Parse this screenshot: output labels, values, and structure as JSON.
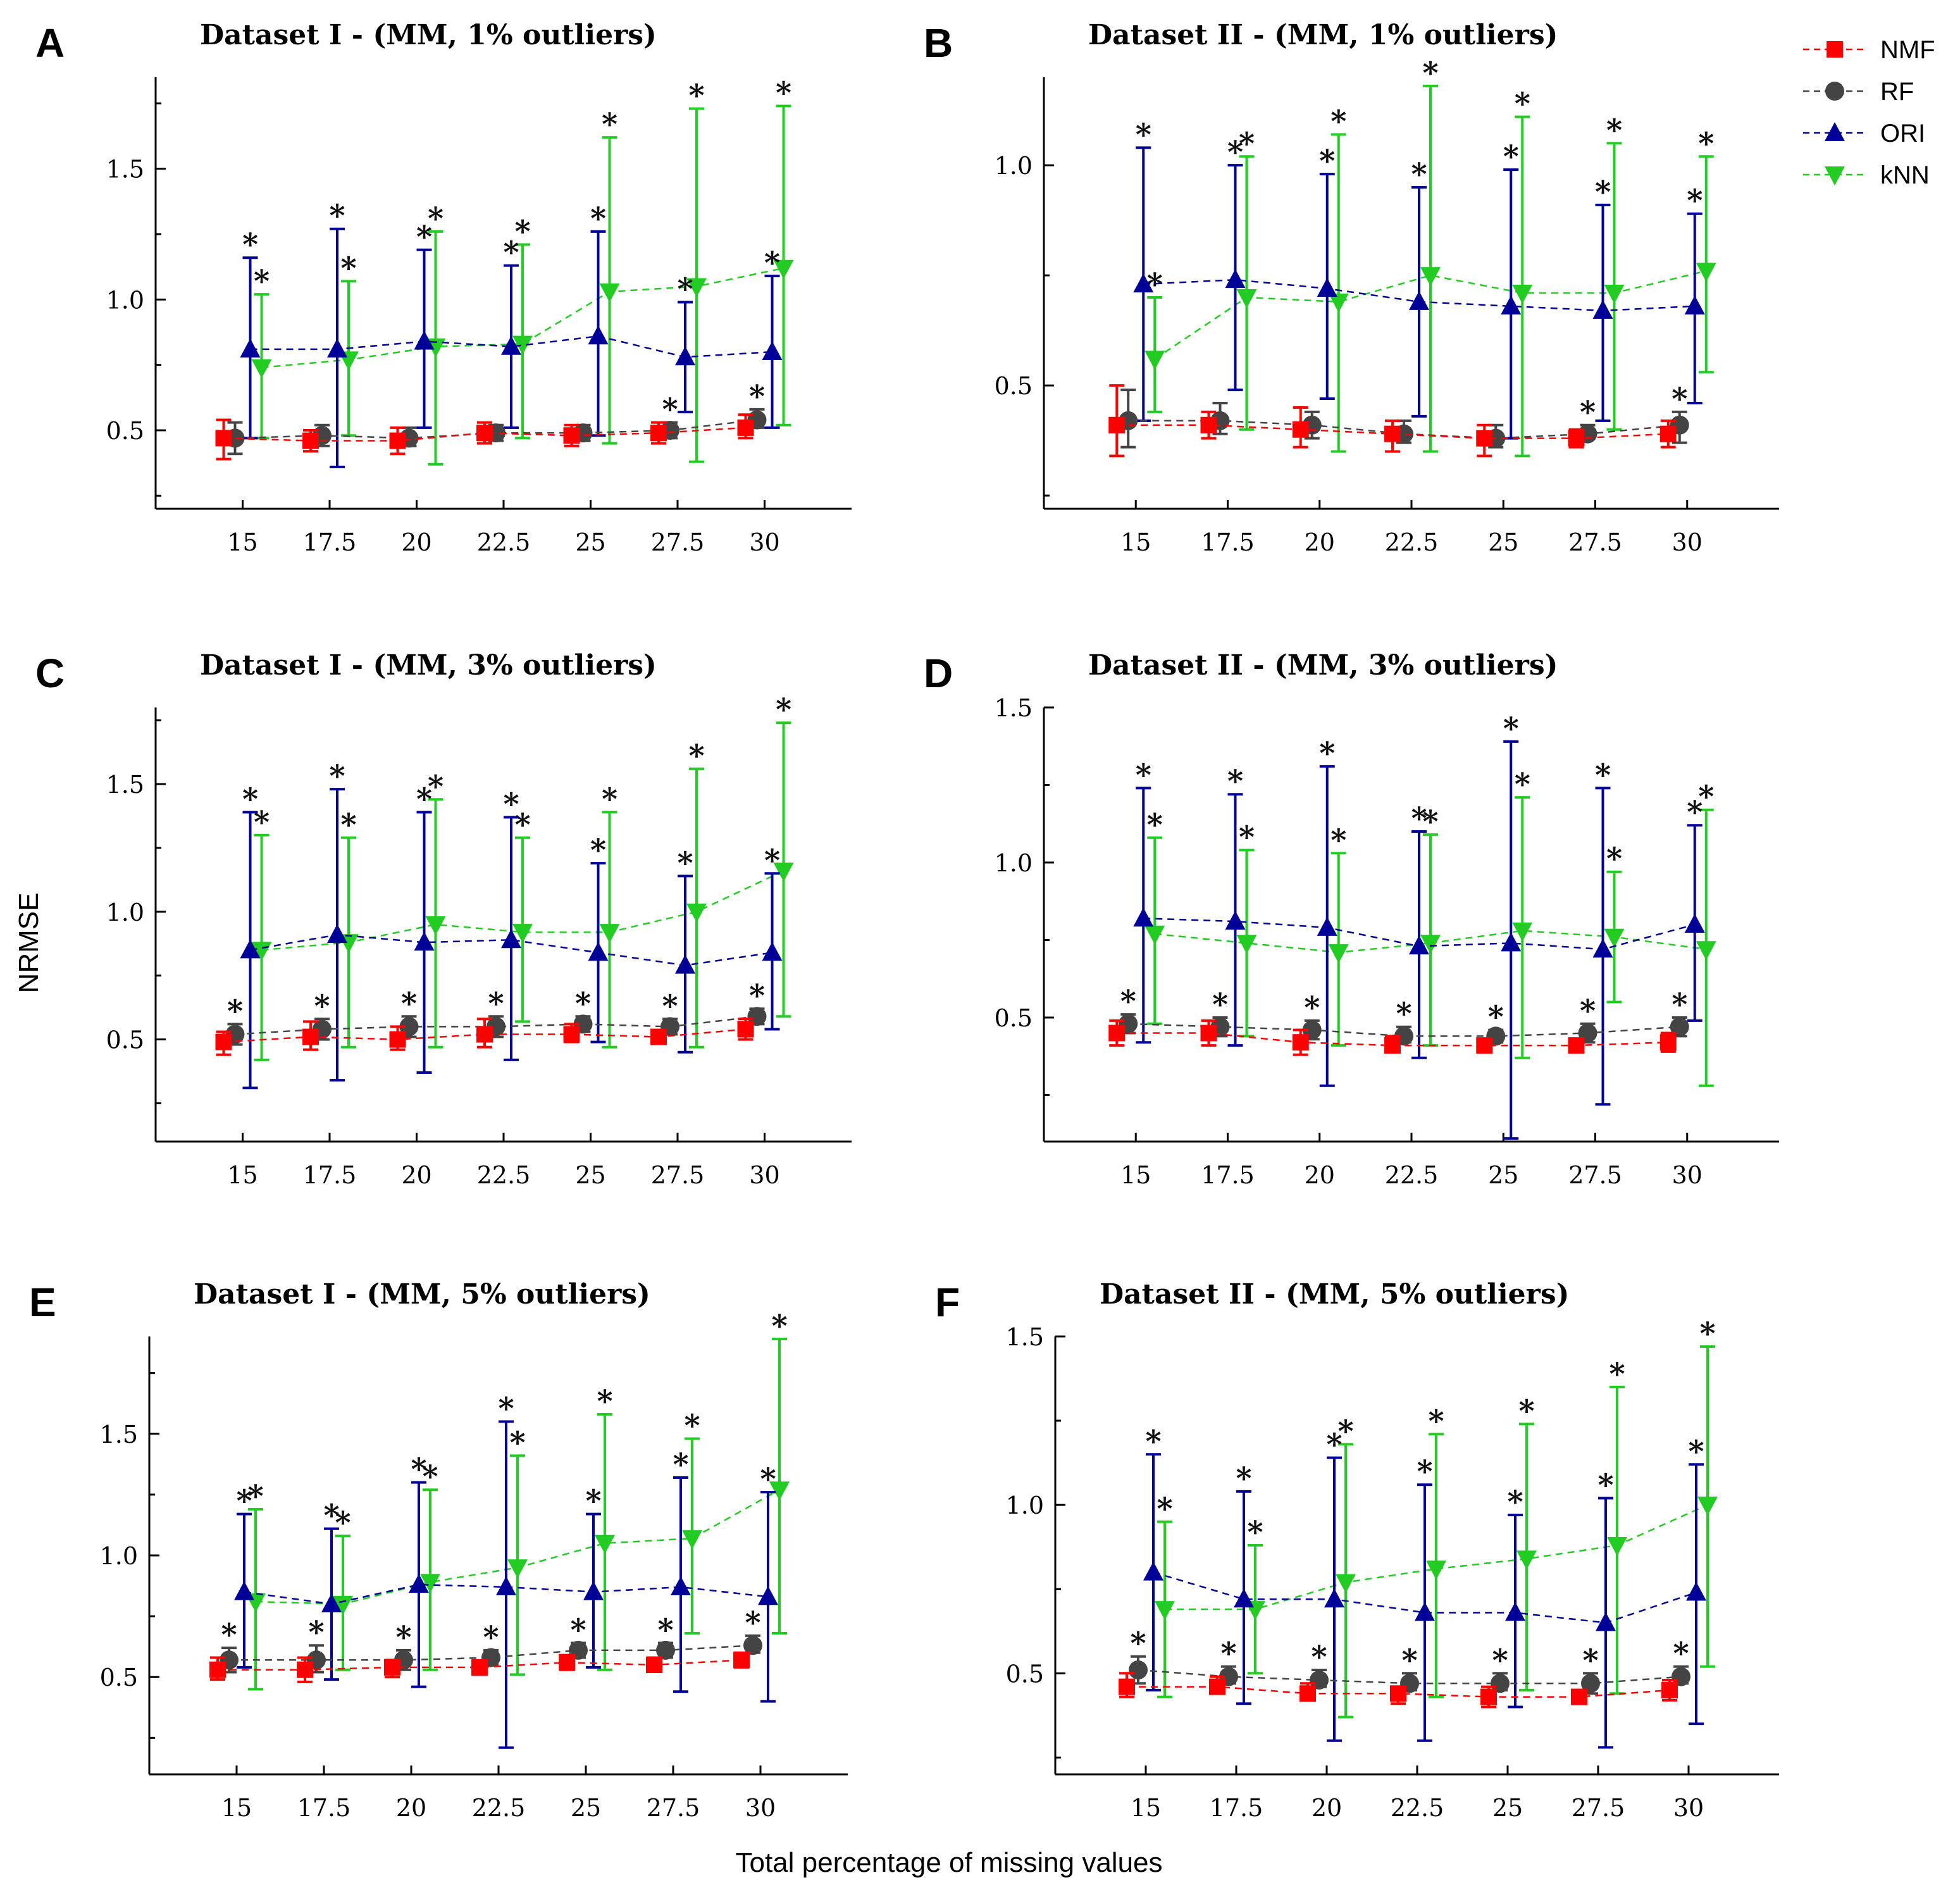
{
  "figure": {
    "ylabel": "NRMSE",
    "xlabel": "Total percentage of missing values"
  },
  "legend": [
    {
      "name": "NMF",
      "color": "#ff0000",
      "marker": "square"
    },
    {
      "name": "RF",
      "color": "#444444",
      "marker": "circle"
    },
    {
      "name": "ORI",
      "color": "#000099",
      "marker": "triangle-up"
    },
    {
      "name": "kNN",
      "color": "#22cc22",
      "marker": "triangle-down"
    }
  ],
  "chart_data": [
    {
      "type": "line",
      "letter": "A",
      "title": "Dataset  I - (MM, 1% outliers)",
      "categories": [
        "15",
        "17.5",
        "20",
        "22.5",
        "25",
        "27.5",
        "30"
      ],
      "ylim": [
        0.2,
        1.85
      ],
      "yticks": [
        0.5,
        1.0,
        1.5
      ],
      "yticklabels": [
        "0.5",
        "1.0",
        "1.5"
      ],
      "series": [
        {
          "name": "NMF",
          "mean": [
            0.47,
            0.46,
            0.46,
            0.49,
            0.48,
            0.49,
            0.51
          ],
          "lo": [
            0.39,
            0.42,
            0.41,
            0.45,
            0.44,
            0.45,
            0.47
          ],
          "hi": [
            0.54,
            0.5,
            0.51,
            0.53,
            0.52,
            0.53,
            0.56
          ],
          "star": [
            0,
            0,
            0,
            0,
            0,
            0,
            0
          ]
        },
        {
          "name": "RF",
          "mean": [
            0.47,
            0.48,
            0.47,
            0.49,
            0.49,
            0.5,
            0.54
          ],
          "lo": [
            0.41,
            0.44,
            0.44,
            0.46,
            0.46,
            0.47,
            0.51
          ],
          "hi": [
            0.53,
            0.52,
            0.51,
            0.52,
            0.52,
            0.53,
            0.58
          ],
          "star": [
            0,
            0,
            0,
            0,
            0,
            1,
            1
          ]
        },
        {
          "name": "ORI",
          "mean": [
            0.81,
            0.81,
            0.84,
            0.82,
            0.86,
            0.78,
            0.8
          ],
          "lo": [
            0.47,
            0.36,
            0.51,
            0.51,
            0.48,
            0.57,
            0.51
          ],
          "hi": [
            1.16,
            1.27,
            1.19,
            1.13,
            1.26,
            0.99,
            1.09
          ],
          "star": [
            1,
            1,
            1,
            1,
            1,
            1,
            1
          ]
        },
        {
          "name": "kNN",
          "mean": [
            0.74,
            0.77,
            0.82,
            0.83,
            1.03,
            1.05,
            1.12
          ],
          "lo": [
            0.47,
            0.48,
            0.37,
            0.47,
            0.45,
            0.38,
            0.52
          ],
          "hi": [
            1.02,
            1.07,
            1.26,
            1.21,
            1.62,
            1.73,
            1.74
          ],
          "star": [
            1,
            1,
            1,
            1,
            1,
            1,
            1
          ]
        }
      ]
    },
    {
      "type": "line",
      "letter": "B",
      "title": "Dataset II - (MM, 1% outliers)",
      "categories": [
        "15",
        "17.5",
        "20",
        "22.5",
        "25",
        "27.5",
        "30"
      ],
      "ylim": [
        0.22,
        1.2
      ],
      "yticks": [
        0.5,
        1.0
      ],
      "yticklabels": [
        "0.5",
        "1.0"
      ],
      "series": [
        {
          "name": "NMF",
          "mean": [
            0.41,
            0.41,
            0.4,
            0.39,
            0.38,
            0.38,
            0.39
          ],
          "lo": [
            0.34,
            0.38,
            0.36,
            0.35,
            0.34,
            0.36,
            0.36
          ],
          "hi": [
            0.5,
            0.44,
            0.45,
            0.42,
            0.41,
            0.4,
            0.42
          ],
          "star": [
            0,
            0,
            0,
            0,
            0,
            0,
            0
          ]
        },
        {
          "name": "RF",
          "mean": [
            0.42,
            0.42,
            0.41,
            0.39,
            0.38,
            0.39,
            0.41
          ],
          "lo": [
            0.36,
            0.39,
            0.38,
            0.37,
            0.36,
            0.38,
            0.37
          ],
          "hi": [
            0.49,
            0.46,
            0.44,
            0.42,
            0.41,
            0.41,
            0.44
          ],
          "star": [
            0,
            0,
            0,
            0,
            0,
            1,
            1
          ]
        },
        {
          "name": "ORI",
          "mean": [
            0.73,
            0.74,
            0.72,
            0.69,
            0.68,
            0.67,
            0.68
          ],
          "lo": [
            0.42,
            0.49,
            0.47,
            0.43,
            0.38,
            0.42,
            0.46
          ],
          "hi": [
            1.04,
            1.0,
            0.98,
            0.95,
            0.99,
            0.91,
            0.89
          ],
          "star": [
            1,
            1,
            1,
            1,
            1,
            1,
            1
          ]
        },
        {
          "name": "kNN",
          "mean": [
            0.56,
            0.7,
            0.69,
            0.75,
            0.71,
            0.71,
            0.76
          ],
          "lo": [
            0.44,
            0.4,
            0.35,
            0.35,
            0.34,
            0.4,
            0.53
          ],
          "hi": [
            0.7,
            1.02,
            1.07,
            1.18,
            1.11,
            1.05,
            1.02
          ],
          "star": [
            1,
            1,
            1,
            1,
            1,
            1,
            1
          ]
        }
      ]
    },
    {
      "type": "line",
      "letter": "C",
      "title": "Dataset  I - (MM, 3% outliers)",
      "categories": [
        "15",
        "17.5",
        "20",
        "22.5",
        "25",
        "27.5",
        "30"
      ],
      "ylim": [
        0.1,
        1.8
      ],
      "yticks": [
        0.5,
        1.0,
        1.5
      ],
      "yticklabels": [
        "0.5",
        "1.0",
        "1.5"
      ],
      "series": [
        {
          "name": "NMF",
          "mean": [
            0.49,
            0.51,
            0.5,
            0.52,
            0.52,
            0.51,
            0.54
          ],
          "lo": [
            0.44,
            0.46,
            0.46,
            0.47,
            0.49,
            0.49,
            0.5
          ],
          "hi": [
            0.53,
            0.57,
            0.55,
            0.58,
            0.56,
            0.53,
            0.58
          ],
          "star": [
            0,
            0,
            0,
            0,
            0,
            0,
            0
          ]
        },
        {
          "name": "RF",
          "mean": [
            0.52,
            0.54,
            0.55,
            0.55,
            0.56,
            0.55,
            0.59
          ],
          "lo": [
            0.48,
            0.5,
            0.51,
            0.51,
            0.53,
            0.52,
            0.56
          ],
          "hi": [
            0.56,
            0.58,
            0.59,
            0.59,
            0.59,
            0.58,
            0.62
          ],
          "star": [
            1,
            1,
            1,
            1,
            1,
            1,
            1
          ]
        },
        {
          "name": "ORI",
          "mean": [
            0.85,
            0.91,
            0.88,
            0.89,
            0.84,
            0.79,
            0.84
          ],
          "lo": [
            0.31,
            0.34,
            0.37,
            0.42,
            0.49,
            0.45,
            0.54
          ],
          "hi": [
            1.39,
            1.48,
            1.39,
            1.37,
            1.19,
            1.14,
            1.15
          ],
          "star": [
            1,
            1,
            1,
            1,
            1,
            1,
            1
          ]
        },
        {
          "name": "kNN",
          "mean": [
            0.85,
            0.88,
            0.95,
            0.92,
            0.92,
            1.0,
            1.16
          ],
          "lo": [
            0.42,
            0.47,
            0.47,
            0.57,
            0.47,
            0.47,
            0.59
          ],
          "hi": [
            1.3,
            1.29,
            1.44,
            1.29,
            1.39,
            1.56,
            1.74
          ],
          "star": [
            1,
            1,
            1,
            1,
            1,
            1,
            1
          ]
        }
      ]
    },
    {
      "type": "line",
      "letter": "D",
      "title": "Dataset II - (MM, 3% outliers)",
      "categories": [
        "15",
        "17.5",
        "20",
        "22.5",
        "25",
        "27.5",
        "30"
      ],
      "ylim": [
        0.1,
        1.5
      ],
      "yticks": [
        0.5,
        1.0,
        1.5
      ],
      "yticklabels": [
        "0.5",
        "1.0",
        "1.5"
      ],
      "series": [
        {
          "name": "NMF",
          "mean": [
            0.45,
            0.45,
            0.42,
            0.41,
            0.41,
            0.41,
            0.42
          ],
          "lo": [
            0.41,
            0.41,
            0.38,
            0.39,
            0.39,
            0.39,
            0.39
          ],
          "hi": [
            0.49,
            0.49,
            0.46,
            0.44,
            0.43,
            0.43,
            0.45
          ],
          "star": [
            0,
            0,
            0,
            0,
            0,
            0,
            0
          ]
        },
        {
          "name": "RF",
          "mean": [
            0.48,
            0.47,
            0.46,
            0.44,
            0.44,
            0.45,
            0.47
          ],
          "lo": [
            0.45,
            0.44,
            0.43,
            0.42,
            0.42,
            0.42,
            0.44
          ],
          "hi": [
            0.51,
            0.5,
            0.49,
            0.47,
            0.46,
            0.48,
            0.5
          ],
          "star": [
            1,
            1,
            1,
            1,
            1,
            1,
            1
          ]
        },
        {
          "name": "ORI",
          "mean": [
            0.82,
            0.81,
            0.79,
            0.73,
            0.74,
            0.72,
            0.8
          ],
          "lo": [
            0.42,
            0.41,
            0.28,
            0.37,
            0.11,
            0.22,
            0.49
          ],
          "hi": [
            1.24,
            1.22,
            1.31,
            1.1,
            1.39,
            1.24,
            1.12
          ],
          "star": [
            1,
            1,
            1,
            1,
            1,
            1,
            1
          ]
        },
        {
          "name": "kNN",
          "mean": [
            0.77,
            0.74,
            0.71,
            0.74,
            0.78,
            0.76,
            0.72
          ],
          "lo": [
            0.48,
            0.44,
            0.41,
            0.41,
            0.37,
            0.55,
            0.28
          ],
          "hi": [
            1.08,
            1.04,
            1.03,
            1.09,
            1.21,
            0.97,
            1.17
          ],
          "star": [
            1,
            1,
            1,
            1,
            1,
            1,
            1
          ]
        }
      ]
    },
    {
      "type": "line",
      "letter": "E",
      "title": "Dataset  I - (MM, 5% outliers)",
      "categories": [
        "15",
        "17.5",
        "20",
        "22.5",
        "25",
        "27.5",
        "30"
      ],
      "ylim": [
        0.1,
        1.9
      ],
      "yticks": [
        0.5,
        1.0,
        1.5
      ],
      "yticklabels": [
        "0.5",
        "1.0",
        "1.5"
      ],
      "series": [
        {
          "name": "NMF",
          "mean": [
            0.53,
            0.53,
            0.54,
            0.54,
            0.56,
            0.55,
            0.57
          ],
          "lo": [
            0.49,
            0.48,
            0.5,
            0.51,
            0.53,
            0.53,
            0.54
          ],
          "hi": [
            0.58,
            0.58,
            0.57,
            0.56,
            0.59,
            0.58,
            0.6
          ],
          "star": [
            0,
            0,
            0,
            0,
            0,
            0,
            0
          ]
        },
        {
          "name": "RF",
          "mean": [
            0.57,
            0.57,
            0.57,
            0.58,
            0.61,
            0.61,
            0.63
          ],
          "lo": [
            0.52,
            0.52,
            0.53,
            0.55,
            0.58,
            0.58,
            0.6
          ],
          "hi": [
            0.62,
            0.63,
            0.61,
            0.61,
            0.64,
            0.64,
            0.67
          ],
          "star": [
            1,
            1,
            1,
            1,
            1,
            1,
            1
          ]
        },
        {
          "name": "ORI",
          "mean": [
            0.85,
            0.8,
            0.88,
            0.87,
            0.85,
            0.87,
            0.83
          ],
          "lo": [
            0.54,
            0.49,
            0.46,
            0.21,
            0.54,
            0.44,
            0.4
          ],
          "hi": [
            1.17,
            1.11,
            1.3,
            1.55,
            1.17,
            1.32,
            1.26
          ],
          "star": [
            1,
            1,
            1,
            1,
            1,
            1,
            1
          ]
        },
        {
          "name": "kNN",
          "mean": [
            0.81,
            0.8,
            0.89,
            0.95,
            1.05,
            1.07,
            1.27
          ],
          "lo": [
            0.45,
            0.53,
            0.53,
            0.51,
            0.53,
            0.68,
            0.68
          ],
          "hi": [
            1.19,
            1.08,
            1.27,
            1.41,
            1.58,
            1.48,
            1.89
          ],
          "star": [
            1,
            1,
            1,
            1,
            1,
            1,
            1
          ]
        }
      ]
    },
    {
      "type": "line",
      "letter": "F",
      "title": "Dataset II - (MM, 5% outliers)",
      "categories": [
        "15",
        "17.5",
        "20",
        "22.5",
        "25",
        "27.5",
        "30"
      ],
      "ylim": [
        0.2,
        1.5
      ],
      "yticks": [
        0.5,
        1.0,
        1.5
      ],
      "yticklabels": [
        "0.5",
        "1.0",
        "1.5"
      ],
      "series": [
        {
          "name": "NMF",
          "mean": [
            0.46,
            0.46,
            0.44,
            0.44,
            0.43,
            0.43,
            0.45
          ],
          "lo": [
            0.43,
            0.44,
            0.42,
            0.41,
            0.4,
            0.41,
            0.42
          ],
          "hi": [
            0.5,
            0.49,
            0.47,
            0.46,
            0.46,
            0.45,
            0.48
          ],
          "star": [
            0,
            0,
            0,
            0,
            0,
            0,
            0
          ]
        },
        {
          "name": "RF",
          "mean": [
            0.51,
            0.49,
            0.48,
            0.47,
            0.47,
            0.47,
            0.49
          ],
          "lo": [
            0.47,
            0.47,
            0.46,
            0.45,
            0.45,
            0.44,
            0.47
          ],
          "hi": [
            0.55,
            0.52,
            0.51,
            0.5,
            0.5,
            0.5,
            0.52
          ],
          "star": [
            1,
            1,
            1,
            1,
            1,
            1,
            1
          ]
        },
        {
          "name": "ORI",
          "mean": [
            0.8,
            0.72,
            0.72,
            0.68,
            0.68,
            0.65,
            0.74
          ],
          "lo": [
            0.45,
            0.41,
            0.3,
            0.3,
            0.4,
            0.28,
            0.35
          ],
          "hi": [
            1.15,
            1.04,
            1.14,
            1.06,
            0.97,
            1.02,
            1.12
          ],
          "star": [
            1,
            1,
            1,
            1,
            1,
            1,
            1
          ]
        },
        {
          "name": "kNN",
          "mean": [
            0.69,
            0.69,
            0.77,
            0.81,
            0.84,
            0.88,
            1.0
          ],
          "lo": [
            0.43,
            0.5,
            0.37,
            0.43,
            0.45,
            0.44,
            0.52
          ],
          "hi": [
            0.95,
            0.88,
            1.18,
            1.21,
            1.24,
            1.35,
            1.47
          ],
          "star": [
            1,
            1,
            1,
            1,
            1,
            1,
            1
          ]
        }
      ]
    }
  ]
}
